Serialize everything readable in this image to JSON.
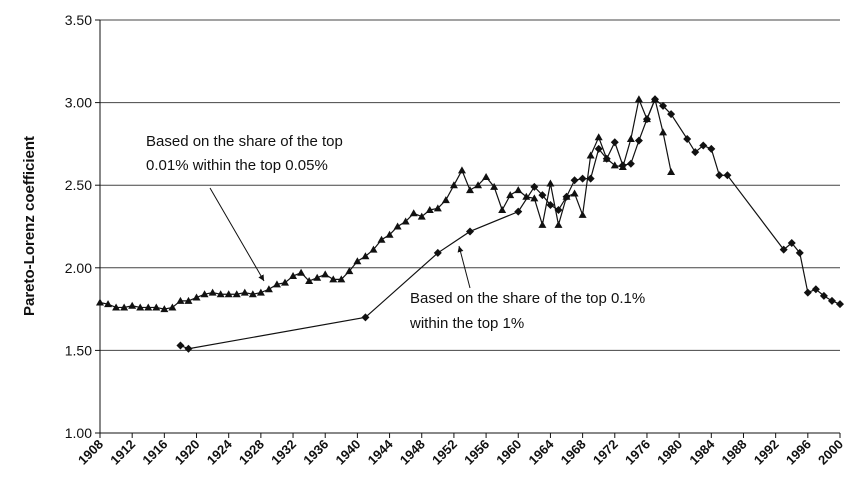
{
  "chart_data": {
    "type": "line",
    "y_label": "Pareto-Lorenz coefficient",
    "xlim": [
      1908,
      2000
    ],
    "xticks": [
      1908,
      1912,
      1916,
      1920,
      1924,
      1928,
      1932,
      1936,
      1940,
      1944,
      1948,
      1952,
      1956,
      1960,
      1964,
      1968,
      1972,
      1976,
      1980,
      1984,
      1988,
      1992,
      1996,
      2000
    ],
    "ylim": [
      1,
      3.5
    ],
    "yticks": [
      {
        "value": 1,
        "label": "1.00"
      },
      {
        "value": 1.5,
        "label": "1.50"
      },
      {
        "value": 2,
        "label": "2.00"
      },
      {
        "value": 2.5,
        "label": "2.50"
      },
      {
        "value": 3,
        "label": "3.00"
      },
      {
        "value": 3.5,
        "label": "3.50"
      }
    ],
    "grid": true,
    "annotations": [
      "Based on the share of the top",
      "0.01% within the top 0.05%",
      "Based on the share of the top 0.1%",
      "within the top 1%"
    ],
    "series": [
      {
        "color": "#111111",
        "marker": "triangle",
        "x": [
          1908,
          1909,
          1910,
          1911,
          1912,
          1913,
          1914,
          1915,
          1916,
          1917,
          1918,
          1919,
          1920,
          1921,
          1922,
          1923,
          1924,
          1925,
          1926,
          1927,
          1928,
          1929,
          1930,
          1931,
          1932,
          1933,
          1934,
          1935,
          1936,
          1937,
          1938,
          1939,
          1940,
          1941,
          1942,
          1943,
          1944,
          1945,
          1946,
          1947,
          1948,
          1949,
          1950,
          1951,
          1952,
          1953,
          1954,
          1955,
          1956,
          1957,
          1958,
          1959,
          1960,
          1961,
          1962,
          1963,
          1964,
          1965,
          1966,
          1967,
          1968,
          1969,
          1970,
          1971,
          1972,
          1973,
          1974,
          1975,
          1976,
          1977,
          1978,
          1979
        ],
        "values": [
          1.79,
          1.78,
          1.76,
          1.76,
          1.77,
          1.76,
          1.76,
          1.76,
          1.75,
          1.76,
          1.8,
          1.8,
          1.82,
          1.84,
          1.85,
          1.84,
          1.84,
          1.84,
          1.85,
          1.84,
          1.85,
          1.87,
          1.9,
          1.91,
          1.95,
          1.97,
          1.92,
          1.94,
          1.96,
          1.93,
          1.93,
          1.98,
          2.04,
          2.07,
          2.11,
          2.17,
          2.2,
          2.25,
          2.28,
          2.33,
          2.31,
          2.35,
          2.36,
          2.41,
          2.5,
          2.59,
          2.47,
          2.5,
          2.55,
          2.49,
          2.35,
          2.44,
          2.47,
          2.43,
          2.42,
          2.26,
          2.51,
          2.26,
          2.43,
          2.45,
          2.32,
          2.68,
          2.79,
          2.66,
          2.62,
          2.61,
          2.78,
          3.02,
          2.9,
          3.02,
          2.82,
          2.58
        ]
      },
      {
        "color": "#111111",
        "marker": "diamond",
        "x": [
          1918,
          1919,
          1941,
          1950,
          1954,
          1960,
          1962,
          1963,
          1964,
          1965,
          1966,
          1967,
          1968,
          1969,
          1970,
          1971,
          1972,
          1973,
          1974,
          1975,
          1976,
          1977,
          1978,
          1979,
          1981,
          1982,
          1983,
          1984,
          1985,
          1986,
          1993,
          1994,
          1995,
          1996,
          1997,
          1998,
          1999,
          2000
        ],
        "values": [
          1.53,
          1.51,
          1.7,
          2.09,
          2.22,
          2.34,
          2.49,
          2.44,
          2.38,
          2.35,
          2.43,
          2.53,
          2.54,
          2.54,
          2.72,
          2.66,
          2.76,
          2.62,
          2.63,
          2.77,
          2.9,
          3.02,
          2.98,
          2.93,
          2.78,
          2.7,
          2.74,
          2.72,
          2.56,
          2.56,
          2.11,
          2.15,
          2.09,
          1.85,
          1.87,
          1.83,
          1.8,
          1.78
        ]
      }
    ]
  }
}
